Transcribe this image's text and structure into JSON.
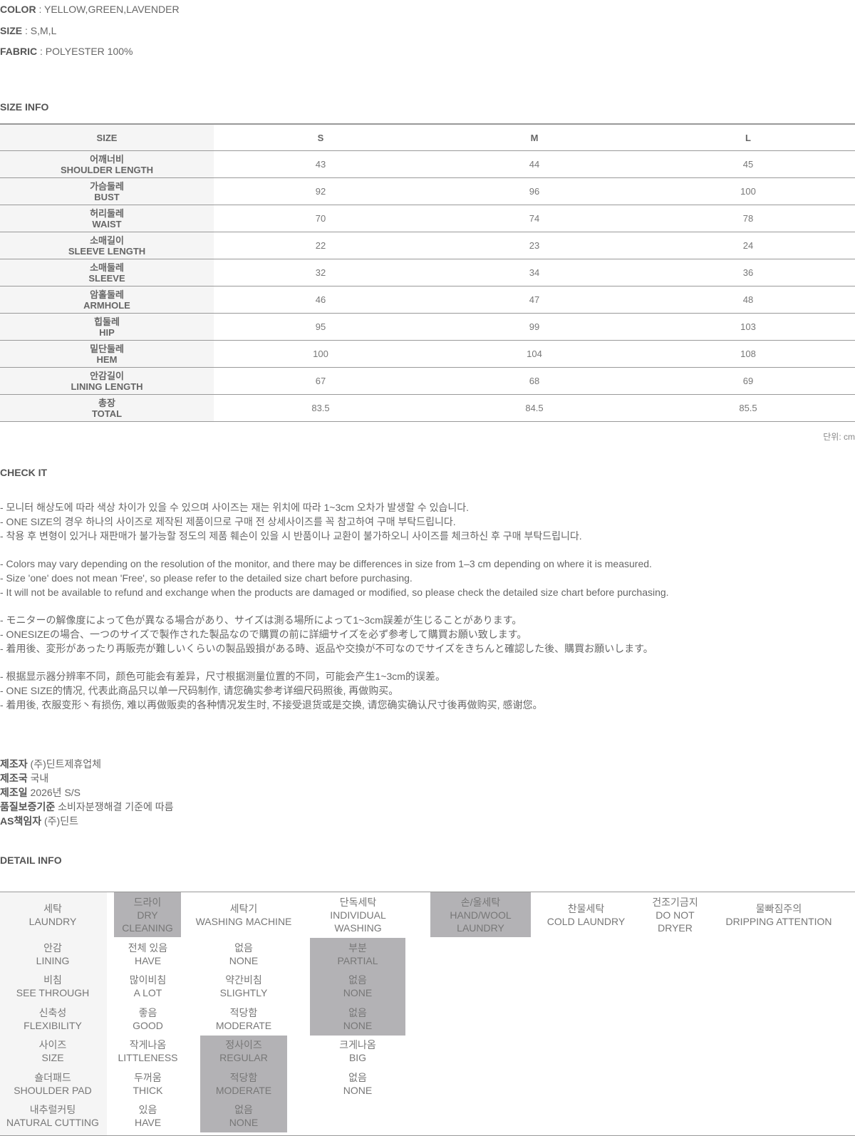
{
  "specs": [
    {
      "label": "COLOR",
      "value": " : YELLOW,GREEN,LAVENDER"
    },
    {
      "label": "SIZE",
      "value": " : S,M,L"
    },
    {
      "label": "FABRIC",
      "value": " : POLYESTER 100%"
    }
  ],
  "size_info": {
    "title": "SIZE INFO",
    "header": [
      "SIZE",
      "S",
      "M",
      "L"
    ],
    "rows": [
      {
        "ko": "어깨너비",
        "en": "SHOULDER LENGTH",
        "v": [
          "43",
          "44",
          "45"
        ]
      },
      {
        "ko": "가슴둘레",
        "en": "BUST",
        "v": [
          "92",
          "96",
          "100"
        ]
      },
      {
        "ko": "허리둘레",
        "en": "WAIST",
        "v": [
          "70",
          "74",
          "78"
        ]
      },
      {
        "ko": "소매길이",
        "en": "SLEEVE LENGTH",
        "v": [
          "22",
          "23",
          "24"
        ]
      },
      {
        "ko": "소매둘레",
        "en": "SLEEVE",
        "v": [
          "32",
          "34",
          "36"
        ]
      },
      {
        "ko": "암홀둘레",
        "en": "ARMHOLE",
        "v": [
          "46",
          "47",
          "48"
        ]
      },
      {
        "ko": "힙둘레",
        "en": "HIP",
        "v": [
          "95",
          "99",
          "103"
        ]
      },
      {
        "ko": "밑단둘레",
        "en": "HEM",
        "v": [
          "100",
          "104",
          "108"
        ]
      },
      {
        "ko": "안감길이",
        "en": "LINING LENGTH",
        "v": [
          "67",
          "68",
          "69"
        ]
      },
      {
        "ko": "총장",
        "en": "TOTAL",
        "v": [
          "83.5",
          "84.5",
          "85.5"
        ]
      }
    ],
    "unit": "단위: cm"
  },
  "check_it": {
    "title": "CHECK IT",
    "groups": [
      [
        "- 모니터 해상도에 따라 색상 차이가 있을 수 있으며 사이즈는 재는 위치에 따라 1~3cm 오차가 발생할 수 있습니다.",
        "- ONE SIZE의 경우 하나의 사이즈로 제작된 제품이므로 구매 전 상세사이즈를 꼭 참고하여 구매 부탁드립니다.",
        "- 착용 후 변형이 있거나 재판매가 불가능할 정도의 제품 훼손이 있을 시 반품이나 교환이 불가하오니 사이즈를 체크하신 후 구매 부탁드립니다."
      ],
      [
        "- Colors may vary depending on the resolution of the monitor, and there may be differences in size from 1–3 cm depending on where it is measured.",
        "- Size 'one' does not mean 'Free', so please refer to the detailed size chart before purchasing.",
        "- It will not be available to refund and exchange when the products are damaged or modified, so please check the detailed size chart before purchasing."
      ],
      [
        "- モニターの解像度によって色が異なる場合があり、サイズは測る場所によって1~3cm誤差が生じることがあります。",
        "- ONESIZEの場合、一つのサイズで製作された製品なので購買の前に詳細サイズを必ず参考して購買お願い致します。",
        "- 着用後、変形があったり再販売が難しいくらいの製品毀損がある時、返品や交換が不可なのでサイズをきちんと確認した後、購買お願いします。"
      ],
      [
        "- 根据显示器分辨率不同，颜色可能会有差异，尺寸根据测量位置的不同，可能会产生1~3cm的误差。",
        "- ONE SIZE的情况, 代表此商品只以单一尺码制作, 请您确实参考详细尺码照後, 再做购买。",
        "- 着用後, 衣服变形丶有损伤, 难以再做贩卖的各种情况发生时, 不接受退货或是交换, 请您确实确认尺寸後再做购买, 感谢您。"
      ]
    ]
  },
  "maker": [
    {
      "label": "제조자",
      "value": " (주)딘트제휴업체"
    },
    {
      "label": "제조국",
      "value": " 국내"
    },
    {
      "label": "제조일",
      "value": " 2026년 S/S"
    },
    {
      "label": "품질보증기준",
      "value": " 소비자분쟁해결 기준에 따름"
    },
    {
      "label": "AS책임자",
      "value": " (주)딘트"
    }
  ],
  "detail_info": {
    "title": "DETAIL INFO",
    "laundry": [
      {
        "ko": "세탁",
        "en": "LAUNDRY"
      },
      {
        "ko": "드라이",
        "en": "DRY CLEANING",
        "on": true
      },
      {
        "ko": "세탁기",
        "en": "WASHING MACHINE"
      },
      {
        "ko": "단독세탁",
        "en": "INDIVIDUAL WASHING"
      },
      {
        "ko": "손/울세탁",
        "en": "HAND/WOOL LAUNDRY",
        "on": true
      },
      {
        "ko": "찬물세탁",
        "en": "COLD LAUNDRY"
      },
      {
        "ko": "건조기금지",
        "en": "DO NOT DRYER"
      },
      {
        "ko": "물빠짐주의",
        "en": "DRIPPING ATTENTION"
      }
    ],
    "rows": [
      {
        "ko": "안감",
        "en": "LINING",
        "opts": [
          {
            "ko": "전체 있음",
            "en": "HAVE"
          },
          {
            "ko": "없음",
            "en": "NONE"
          },
          {
            "ko": "부분",
            "en": "PARTIAL",
            "on": true
          }
        ]
      },
      {
        "ko": "비침",
        "en": "SEE THROUGH",
        "opts": [
          {
            "ko": "많이비침",
            "en": "A LOT"
          },
          {
            "ko": "약간비침",
            "en": "SLIGHTLY"
          },
          {
            "ko": "없음",
            "en": "NONE",
            "on": true
          }
        ]
      },
      {
        "ko": "신축성",
        "en": "FLEXIBILITY",
        "opts": [
          {
            "ko": "좋음",
            "en": "GOOD"
          },
          {
            "ko": "적당함",
            "en": "MODERATE"
          },
          {
            "ko": "없음",
            "en": "NONE",
            "on": true
          }
        ]
      },
      {
        "ko": "사이즈",
        "en": "SIZE",
        "opts": [
          {
            "ko": "작게나옴",
            "en": "LITTLENESS"
          },
          {
            "ko": "정사이즈",
            "en": "REGULAR",
            "on": true
          },
          {
            "ko": "크게나옴",
            "en": "BIG"
          }
        ]
      },
      {
        "ko": "숄더패드",
        "en": "SHOULDER PAD",
        "opts": [
          {
            "ko": "두꺼움",
            "en": "THICK"
          },
          {
            "ko": "적당함",
            "en": "MODERATE",
            "on": true
          },
          {
            "ko": "없음",
            "en": "NONE"
          }
        ]
      },
      {
        "ko": "내추럴커팅",
        "en": "NATURAL CUTTING",
        "opts": [
          {
            "ko": "있음",
            "en": "HAVE"
          },
          {
            "ko": "없음",
            "en": "NONE",
            "on": true
          }
        ]
      }
    ]
  },
  "colors": {
    "highlight": "#b3b2b5",
    "label_bg": "#f5f5f5"
  }
}
